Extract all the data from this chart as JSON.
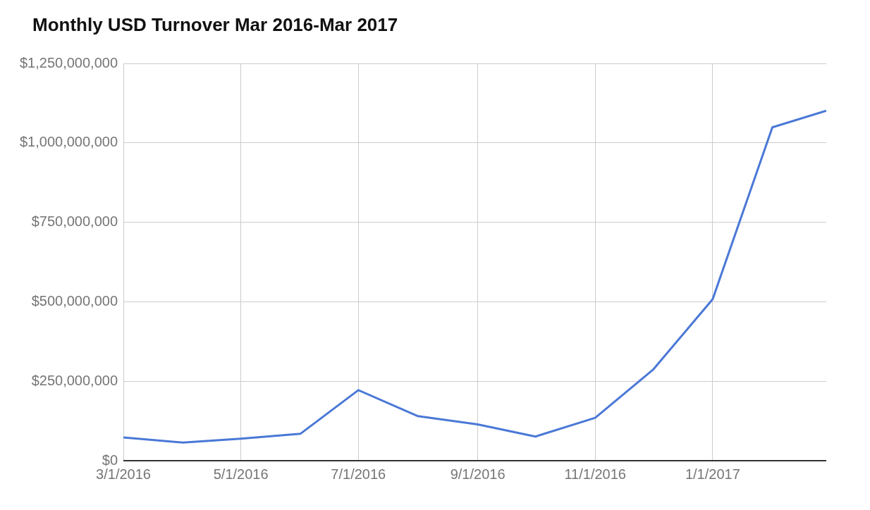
{
  "chart_data": {
    "type": "line",
    "title": "Monthly USD Turnover Mar 2016-Mar 2017",
    "x": [
      "2016-03-01",
      "2016-04-01",
      "2016-05-01",
      "2016-06-01",
      "2016-07-01",
      "2016-08-01",
      "2016-09-01",
      "2016-10-01",
      "2016-11-01",
      "2016-12-01",
      "2017-01-01",
      "2017-02-01",
      "2017-03-01"
    ],
    "series": [
      {
        "color": "#4a78d6",
        "values": [
          73000000,
          57000000,
          69000000,
          85000000,
          222000000,
          140000000,
          114000000,
          76000000,
          135000000,
          286000000,
          508000000,
          1049000000,
          1101000000
        ]
      }
    ],
    "xlim": [
      "2016-03-01",
      "2017-03-01"
    ],
    "xticks": [
      {
        "value": "2016-03-01",
        "label": "3/1/2016"
      },
      {
        "value": "2016-05-01",
        "label": "5/1/2016"
      },
      {
        "value": "2016-07-01",
        "label": "7/1/2016"
      },
      {
        "value": "2016-09-01",
        "label": "9/1/2016"
      },
      {
        "value": "2016-11-01",
        "label": "11/1/2016"
      },
      {
        "value": "2017-01-01",
        "label": "1/1/2017"
      }
    ],
    "ylim": [
      0,
      1250000000
    ],
    "yticks": [
      {
        "value": 0,
        "label": "$0"
      },
      {
        "value": 250000000,
        "label": "$250,000,000"
      },
      {
        "value": 500000000,
        "label": "$500,000,000"
      },
      {
        "value": 750000000,
        "label": "$750,000,000"
      },
      {
        "value": 1000000000,
        "label": "$1,000,000,000"
      },
      {
        "value": 1250000000,
        "label": "$1,250,000,000"
      }
    ],
    "grid": true,
    "legend": false,
    "marker": "none",
    "line_style": "solid"
  }
}
